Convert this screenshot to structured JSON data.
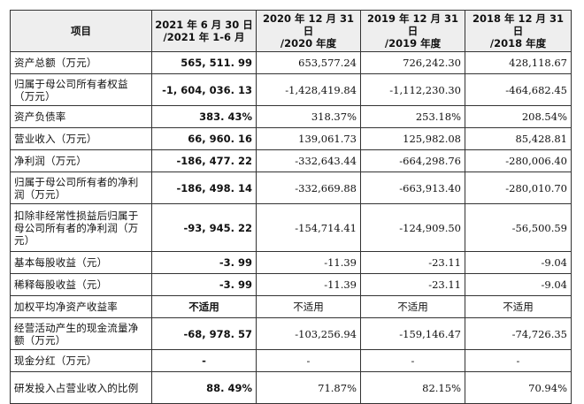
{
  "header": {
    "item": "项目",
    "col1": [
      "2021 年 6 月 30 日",
      "/2021 年 1-6 月"
    ],
    "col2": [
      "2020 年 12 月 31 日",
      "/2020 年度"
    ],
    "col3": [
      "2019 年 12 月 31 日",
      "/2019 年度"
    ],
    "col4": [
      "2018 年 12 月 31 日",
      "/2018 年度"
    ]
  },
  "rows": [
    {
      "label": "资产总额（万元）",
      "v": [
        "565, 511. 99",
        "653,577.24",
        "726,242.30",
        "428,118.67"
      ]
    },
    {
      "label": "归属于母公司所有者权益（万元）",
      "v": [
        "-1, 604, 036. 13",
        "-1,428,419.84",
        "-1,112,230.30",
        "-464,682.45"
      ]
    },
    {
      "label": "资产负债率",
      "v": [
        "383. 43%",
        "318.37%",
        "253.18%",
        "208.54%"
      ]
    },
    {
      "label": "营业收入（万元）",
      "v": [
        "66, 960. 16",
        "139,061.73",
        "125,982.08",
        "85,428.81"
      ]
    },
    {
      "label": "净利润（万元）",
      "v": [
        "-186, 477. 22",
        "-332,643.44",
        "-664,298.76",
        "-280,006.40"
      ]
    },
    {
      "label": "归属于母公司所有者的净利润（万元）",
      "v": [
        "-186, 498. 14",
        "-332,669.88",
        "-663,913.40",
        "-280,010.70"
      ]
    },
    {
      "label": "扣除非经常性损益后归属于母公司所有者的净利润（万元）",
      "v": [
        "-93, 945. 22",
        "-154,714.41",
        "-124,909.50",
        "-56,500.59"
      ]
    },
    {
      "label": "基本每股收益（元）",
      "v": [
        "-3. 99",
        "-11.39",
        "-23.11",
        "-9.04"
      ]
    },
    {
      "label": "稀释每股收益（元）",
      "v": [
        "-3. 99",
        "-11.39",
        "-23.11",
        "-9.04"
      ]
    },
    {
      "label": "加权平均净资产收益率",
      "v": [
        "不适用",
        "不适用",
        "不适用",
        "不适用"
      ]
    },
    {
      "label": "经营活动产生的现金流量净额（万元）",
      "v": [
        "-68, 978. 57",
        "-103,256.94",
        "-159,146.47",
        "-74,726.35"
      ]
    },
    {
      "label": "现金分红（万元）",
      "v": [
        "-",
        "-",
        "-",
        "-"
      ]
    },
    {
      "label": "研发投入占营业收入的比例",
      "v": [
        "88. 49%",
        "71.87%",
        "82.15%",
        "70.94%"
      ]
    }
  ]
}
